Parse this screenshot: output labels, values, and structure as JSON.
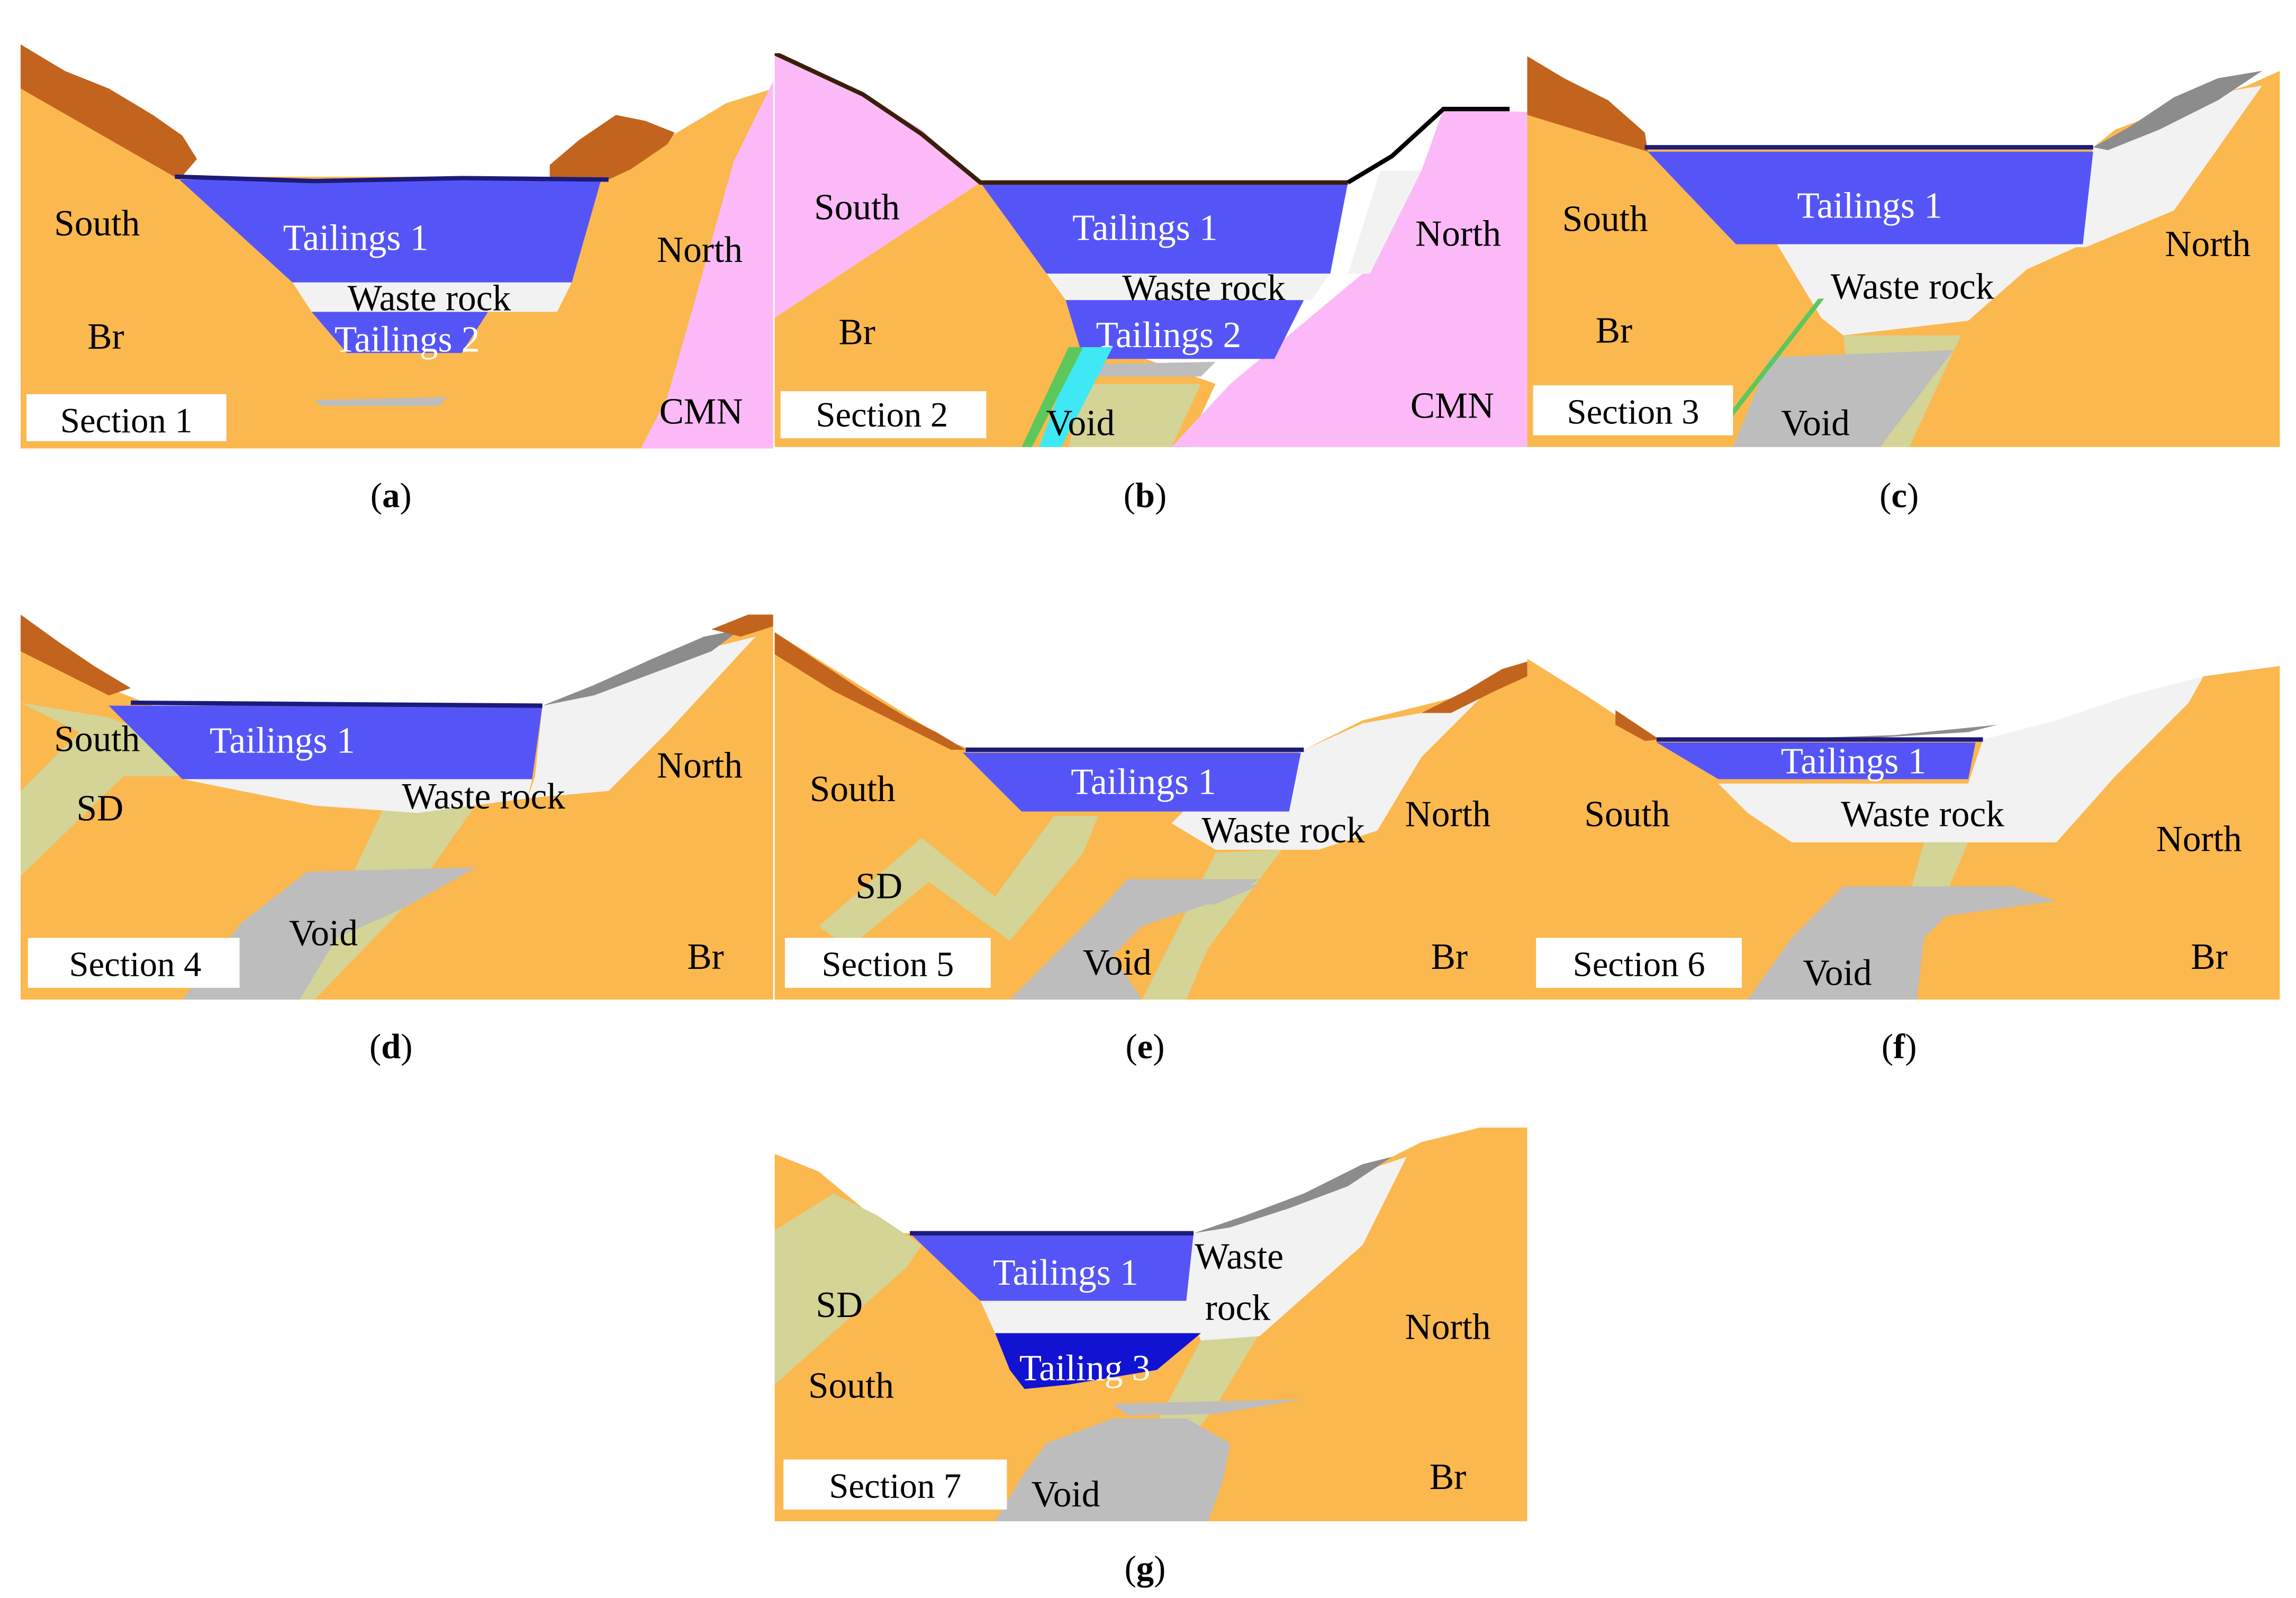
{
  "colors": {
    "bedrock": "#FBB84F",
    "cmn": "#FBBAF7",
    "tailings1": "#5555F7",
    "tailings_dark": "#1212D2",
    "waste_rock": "#F2F2F2",
    "void": "#BDBDBD",
    "sd": "#D3D495",
    "topo": "#C2641E",
    "topo_grey": "#8C8C8C",
    "cyan": "#3EE9F5",
    "green_line": "#5CC85C",
    "white": "#FFFFFF",
    "black": "#111111"
  },
  "panels": [
    {
      "id": "a",
      "caption_letter": "a",
      "section_label": "Section 1",
      "labels": [
        {
          "key": "south",
          "text": "South",
          "color": "black"
        },
        {
          "key": "br",
          "text": "Br",
          "color": "black"
        },
        {
          "key": "tailings1",
          "text": "Tailings 1",
          "color": "white"
        },
        {
          "key": "waste_rock",
          "text": "Waste rock",
          "color": "black"
        },
        {
          "key": "tailings2",
          "text": "Tailings 2",
          "color": "white"
        },
        {
          "key": "north",
          "text": "North",
          "color": "black"
        },
        {
          "key": "cmn",
          "text": "CMN",
          "color": "black"
        }
      ]
    },
    {
      "id": "b",
      "caption_letter": "b",
      "section_label": "Section 2",
      "labels": [
        {
          "key": "south",
          "text": "South",
          "color": "black"
        },
        {
          "key": "br",
          "text": "Br",
          "color": "black"
        },
        {
          "key": "tailings1",
          "text": "Tailings 1",
          "color": "white"
        },
        {
          "key": "waste_rock",
          "text": "Waste rock",
          "color": "black"
        },
        {
          "key": "tailings2",
          "text": "Tailings 2",
          "color": "white"
        },
        {
          "key": "void",
          "text": "Void",
          "color": "black"
        },
        {
          "key": "north",
          "text": "North",
          "color": "black"
        },
        {
          "key": "cmn",
          "text": "CMN",
          "color": "black"
        }
      ]
    },
    {
      "id": "c",
      "caption_letter": "c",
      "section_label": "Section 3",
      "labels": [
        {
          "key": "south",
          "text": "South",
          "color": "black"
        },
        {
          "key": "br",
          "text": "Br",
          "color": "black"
        },
        {
          "key": "tailings1",
          "text": "Tailings 1",
          "color": "white"
        },
        {
          "key": "waste_rock",
          "text": "Waste rock",
          "color": "black"
        },
        {
          "key": "void",
          "text": "Void",
          "color": "black"
        },
        {
          "key": "north",
          "text": "North",
          "color": "black"
        }
      ]
    },
    {
      "id": "d",
      "caption_letter": "d",
      "section_label": "Section 4",
      "labels": [
        {
          "key": "south",
          "text": "South",
          "color": "black"
        },
        {
          "key": "sd",
          "text": "SD",
          "color": "black"
        },
        {
          "key": "tailings1",
          "text": "Tailings 1",
          "color": "white"
        },
        {
          "key": "waste_rock",
          "text": "Waste rock",
          "color": "black"
        },
        {
          "key": "void",
          "text": "Void",
          "color": "black"
        },
        {
          "key": "north",
          "text": "North",
          "color": "black"
        },
        {
          "key": "br",
          "text": "Br",
          "color": "black"
        }
      ]
    },
    {
      "id": "e",
      "caption_letter": "e",
      "section_label": "Section 5",
      "labels": [
        {
          "key": "south",
          "text": "South",
          "color": "black"
        },
        {
          "key": "sd",
          "text": "SD",
          "color": "black"
        },
        {
          "key": "tailings1",
          "text": "Tailings 1",
          "color": "white"
        },
        {
          "key": "waste_rock",
          "text": "Waste rock",
          "color": "black"
        },
        {
          "key": "void",
          "text": "Void",
          "color": "black"
        },
        {
          "key": "north",
          "text": "North",
          "color": "black"
        },
        {
          "key": "br",
          "text": "Br",
          "color": "black"
        }
      ]
    },
    {
      "id": "f",
      "caption_letter": "f",
      "section_label": "Section 6",
      "labels": [
        {
          "key": "south",
          "text": "South",
          "color": "black"
        },
        {
          "key": "tailings1",
          "text": "Tailings 1",
          "color": "white"
        },
        {
          "key": "waste_rock",
          "text": "Waste rock",
          "color": "black"
        },
        {
          "key": "void",
          "text": "Void",
          "color": "black"
        },
        {
          "key": "north",
          "text": "North",
          "color": "black"
        },
        {
          "key": "br",
          "text": "Br",
          "color": "black"
        }
      ]
    },
    {
      "id": "g",
      "caption_letter": "g",
      "section_label": "Section 7",
      "labels": [
        {
          "key": "sd",
          "text": "SD",
          "color": "black"
        },
        {
          "key": "south",
          "text": "South",
          "color": "black"
        },
        {
          "key": "tailings1",
          "text": "Tailings 1",
          "color": "white"
        },
        {
          "key": "waste",
          "text": "Waste",
          "color": "black"
        },
        {
          "key": "rock",
          "text": "rock",
          "color": "black"
        },
        {
          "key": "tailing3",
          "text": "Tailing 3",
          "color": "white"
        },
        {
          "key": "north",
          "text": "North",
          "color": "black"
        },
        {
          "key": "void",
          "text": "Void",
          "color": "black"
        },
        {
          "key": "br",
          "text": "Br",
          "color": "black"
        }
      ]
    }
  ]
}
